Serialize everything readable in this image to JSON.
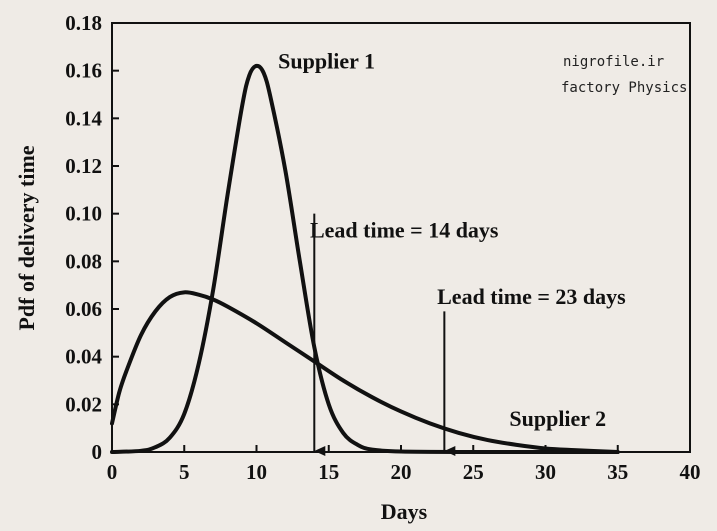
{
  "watermark": {
    "line1": "nigrofile.ir",
    "line2": "factory Physics"
  },
  "chart_data": {
    "type": "line",
    "title": "",
    "xlabel": "Days",
    "ylabel": "Pdf of delivery time",
    "xlim": [
      0,
      40
    ],
    "ylim": [
      0,
      0.18
    ],
    "x_ticks": [
      0,
      5,
      10,
      15,
      20,
      25,
      30,
      35,
      40
    ],
    "x_tick_labels": [
      "0",
      "5",
      "10",
      "15",
      "20",
      "25",
      "30",
      "35",
      "40"
    ],
    "y_ticks": [
      0,
      0.02,
      0.04,
      0.06,
      0.08,
      0.1,
      0.12,
      0.14,
      0.16,
      0.18
    ],
    "y_tick_labels": [
      "0",
      "0.02",
      "0.04",
      "0.06",
      "0.08",
      "0.10",
      "0.12",
      "0.14",
      "0.16",
      "0.18"
    ],
    "grid": false,
    "legend": "none",
    "series": [
      {
        "name": "Supplier 1",
        "x": [
          0,
          2,
          3,
          4,
          5,
          6,
          7,
          8,
          9,
          9.5,
          10,
          10.5,
          11,
          12,
          13,
          14,
          15,
          16,
          17,
          18,
          20,
          25,
          30,
          35
        ],
        "y": [
          0,
          0.0005,
          0.002,
          0.006,
          0.016,
          0.037,
          0.068,
          0.108,
          0.145,
          0.158,
          0.162,
          0.159,
          0.148,
          0.118,
          0.08,
          0.044,
          0.02,
          0.008,
          0.003,
          0.001,
          0.0002,
          0,
          0,
          0
        ]
      },
      {
        "name": "Supplier 2",
        "x": [
          0,
          0.5,
          1,
          2,
          3,
          4,
          5,
          6,
          7,
          8,
          10,
          12,
          14,
          16,
          18,
          20,
          22,
          24,
          26,
          28,
          30,
          32,
          35
        ],
        "y": [
          0.012,
          0.025,
          0.034,
          0.049,
          0.059,
          0.065,
          0.067,
          0.066,
          0.064,
          0.061,
          0.054,
          0.046,
          0.038,
          0.03,
          0.023,
          0.017,
          0.012,
          0.008,
          0.005,
          0.003,
          0.0015,
          0.0008,
          0
        ]
      }
    ],
    "annotations": [
      {
        "text": "Supplier 1",
        "x": 11.5,
        "y": 0.161
      },
      {
        "text": "Supplier 2",
        "x": 27.5,
        "y": 0.011
      },
      {
        "text": "Lead time = 14 days",
        "x": 13.7,
        "y": 0.09
      },
      {
        "text": "Lead time = 23 days",
        "x": 22.5,
        "y": 0.062
      }
    ],
    "arrows": [
      {
        "x": 14,
        "y_start": 0.1,
        "y_end": 0
      },
      {
        "x": 23,
        "y_start": 0.059,
        "y_end": 0
      }
    ]
  }
}
